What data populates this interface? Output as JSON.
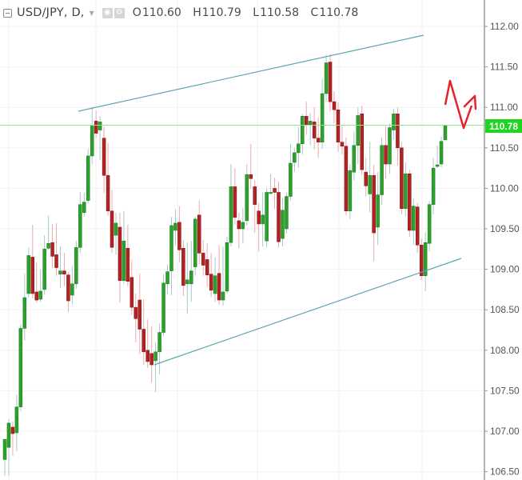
{
  "legend": {
    "symbol": "USD/JPY, D,",
    "icons": [
      "collapse-icon",
      "dropdown-caret-icon",
      "eye-icon",
      "gear-icon"
    ],
    "ohlc": [
      {
        "key": "O",
        "value": "110.60"
      },
      {
        "key": "H",
        "value": "110.79"
      },
      {
        "key": "L",
        "value": "110.58"
      },
      {
        "key": "C",
        "value": "110.78"
      }
    ]
  },
  "last_price_label": "110.78",
  "colors": {
    "up": "#2ca02c",
    "down": "#b22222",
    "up_wick": "#a8c8cc",
    "down_wick": "#f0a8b0",
    "trendline": "#5aa7b0",
    "price_line": "#8ee88e",
    "price_tag": "#1fd51f",
    "arrow": "#e8202a",
    "grid": "#f2f2f2",
    "axis": "#9a9a9a"
  },
  "chart_data": {
    "type": "candlestick",
    "title": "USD/JPY, D,",
    "xlabel": "",
    "ylabel": "",
    "ylim": [
      106.4,
      112.3
    ],
    "y_ticks": [
      "112.00",
      "111.50",
      "111.00",
      "110.50",
      "110.00",
      "109.50",
      "109.00",
      "108.50",
      "108.00",
      "107.50",
      "107.00",
      "106.50"
    ],
    "grid": true,
    "last_price": 110.78,
    "candles": [
      [
        106.65,
        106.9,
        106.45,
        106.85
      ],
      [
        106.8,
        107.1,
        106.45,
        107.15
      ],
      [
        107.05,
        106.97,
        106.7,
        107.12
      ],
      [
        106.98,
        107.3,
        106.75,
        107.45
      ],
      [
        107.3,
        108.27,
        107.25,
        108.32
      ],
      [
        108.27,
        108.65,
        108.12,
        108.95
      ],
      [
        108.7,
        109.17,
        108.65,
        109.27
      ],
      [
        109.15,
        108.7,
        108.64,
        109.55
      ],
      [
        108.72,
        108.62,
        108.59,
        109.08
      ],
      [
        108.63,
        108.73,
        108.6,
        109.0
      ],
      [
        108.75,
        109.25,
        108.69,
        109.42
      ],
      [
        109.26,
        109.32,
        109.24,
        109.66
      ],
      [
        109.33,
        109.16,
        109.01,
        109.56
      ],
      [
        109.18,
        109.02,
        108.92,
        109.57
      ],
      [
        108.94,
        108.98,
        108.77,
        109.28
      ],
      [
        108.98,
        108.94,
        108.79,
        109.2
      ],
      [
        108.93,
        108.61,
        108.47,
        108.97
      ],
      [
        108.68,
        108.82,
        108.57,
        109.04
      ],
      [
        108.82,
        109.27,
        108.76,
        109.35
      ],
      [
        109.27,
        109.8,
        109.2,
        109.95
      ],
      [
        109.7,
        109.83,
        109.65,
        109.94
      ],
      [
        109.85,
        110.4,
        109.81,
        110.49
      ],
      [
        110.4,
        110.77,
        110.3,
        111.0
      ],
      [
        110.83,
        110.68,
        110.62,
        110.96
      ],
      [
        110.72,
        110.82,
        110.35,
        110.89
      ],
      [
        110.62,
        110.16,
        109.94,
        110.76
      ],
      [
        110.16,
        109.72,
        109.66,
        110.56
      ],
      [
        109.72,
        109.27,
        109.2,
        109.98
      ],
      [
        109.42,
        109.57,
        109.18,
        109.7
      ],
      [
        109.52,
        108.86,
        108.59,
        109.7
      ],
      [
        108.86,
        109.35,
        108.82,
        109.72
      ],
      [
        109.26,
        108.85,
        108.79,
        109.55
      ],
      [
        108.9,
        108.53,
        108.44,
        109.12
      ],
      [
        108.53,
        108.39,
        108.1,
        108.7
      ],
      [
        108.62,
        108.26,
        107.95,
        108.95
      ],
      [
        108.26,
        107.98,
        107.82,
        108.63
      ],
      [
        108.0,
        107.86,
        107.78,
        108.38
      ],
      [
        107.96,
        107.82,
        107.6,
        108.3
      ],
      [
        107.87,
        107.98,
        107.48,
        108.1
      ],
      [
        107.98,
        108.22,
        107.7,
        108.33
      ],
      [
        108.22,
        108.83,
        108.17,
        108.94
      ],
      [
        108.82,
        108.97,
        108.69,
        109.06
      ],
      [
        108.98,
        109.54,
        108.68,
        109.65
      ],
      [
        109.48,
        109.57,
        109.3,
        109.74
      ],
      [
        109.58,
        109.24,
        109.09,
        109.78
      ],
      [
        109.26,
        108.8,
        108.67,
        109.36
      ],
      [
        108.82,
        108.87,
        108.45,
        109.33
      ],
      [
        108.82,
        108.98,
        108.6,
        109.35
      ],
      [
        109.03,
        109.62,
        108.92,
        109.65
      ],
      [
        109.67,
        109.2,
        109.06,
        109.85
      ],
      [
        109.2,
        109.05,
        108.92,
        109.36
      ],
      [
        109.12,
        108.93,
        108.78,
        109.32
      ],
      [
        108.94,
        108.74,
        108.66,
        109.2
      ],
      [
        108.7,
        108.92,
        108.6,
        109.15
      ],
      [
        108.95,
        108.62,
        108.56,
        109.3
      ],
      [
        108.62,
        108.72,
        108.55,
        109.28
      ],
      [
        108.73,
        109.33,
        108.7,
        109.4
      ],
      [
        109.33,
        110.02,
        109.28,
        110.3
      ],
      [
        110.02,
        109.64,
        109.55,
        110.25
      ],
      [
        109.6,
        109.5,
        109.26,
        109.7
      ],
      [
        109.5,
        109.58,
        109.32,
        109.76
      ],
      [
        109.6,
        110.17,
        109.54,
        110.3
      ],
      [
        110.17,
        110.12,
        109.99,
        110.55
      ],
      [
        110.02,
        109.8,
        109.45,
        110.1
      ],
      [
        109.72,
        109.56,
        109.22,
        109.82
      ],
      [
        109.56,
        109.67,
        109.28,
        109.95
      ],
      [
        109.35,
        109.95,
        109.27,
        110.0
      ],
      [
        109.95,
        109.95,
        109.94,
        110.18
      ],
      [
        110.0,
        109.95,
        109.75,
        110.13
      ],
      [
        109.95,
        109.34,
        109.27,
        110.08
      ],
      [
        109.38,
        109.73,
        109.28,
        109.88
      ],
      [
        109.5,
        109.9,
        109.44,
        109.95
      ],
      [
        109.9,
        110.31,
        109.85,
        110.55
      ],
      [
        110.32,
        110.44,
        110.2,
        110.5
      ],
      [
        110.44,
        110.55,
        110.25,
        110.76
      ],
      [
        110.55,
        110.89,
        110.42,
        110.92
      ],
      [
        110.89,
        110.78,
        110.66,
        111.07
      ],
      [
        110.78,
        110.83,
        110.53,
        110.93
      ],
      [
        110.82,
        110.62,
        110.48,
        111.0
      ],
      [
        110.62,
        110.57,
        110.38,
        110.88
      ],
      [
        110.57,
        111.17,
        110.49,
        111.35
      ],
      [
        111.17,
        111.55,
        111.07,
        111.65
      ],
      [
        111.56,
        111.07,
        110.95,
        111.66
      ],
      [
        111.07,
        110.97,
        110.8,
        111.2
      ],
      [
        110.97,
        110.57,
        110.45,
        111.06
      ],
      [
        110.57,
        110.52,
        110.42,
        110.77
      ],
      [
        110.52,
        109.72,
        109.67,
        110.63
      ],
      [
        109.72,
        110.22,
        109.62,
        110.3
      ],
      [
        110.2,
        110.53,
        110.1,
        110.7
      ],
      [
        110.53,
        110.9,
        110.3,
        111.0
      ],
      [
        110.92,
        110.23,
        110.16,
        111.02
      ],
      [
        110.2,
        110.03,
        109.9,
        110.38
      ],
      [
        109.93,
        110.16,
        109.7,
        110.57
      ],
      [
        110.16,
        109.45,
        109.1,
        110.29
      ],
      [
        109.52,
        109.92,
        109.3,
        110.2
      ],
      [
        109.92,
        110.53,
        109.8,
        110.63
      ],
      [
        110.53,
        110.3,
        110.12,
        110.77
      ],
      [
        110.3,
        110.75,
        110.18,
        110.8
      ],
      [
        110.72,
        110.92,
        110.6,
        110.98
      ],
      [
        110.92,
        110.5,
        110.28,
        111.0
      ],
      [
        110.5,
        109.75,
        109.68,
        110.57
      ],
      [
        109.75,
        110.18,
        109.65,
        110.32
      ],
      [
        110.18,
        109.48,
        109.4,
        110.23
      ],
      [
        109.48,
        109.78,
        109.3,
        109.88
      ],
      [
        109.77,
        109.3,
        109.2,
        109.82
      ],
      [
        109.3,
        108.92,
        108.87,
        109.38
      ],
      [
        108.92,
        109.33,
        108.73,
        109.46
      ],
      [
        109.32,
        109.8,
        109.22,
        109.84
      ],
      [
        109.8,
        110.25,
        109.68,
        110.37
      ],
      [
        110.27,
        110.29,
        110.25,
        110.53
      ],
      [
        110.3,
        110.58,
        110.26,
        110.64
      ],
      [
        110.6,
        110.78,
        110.58,
        110.79
      ]
    ],
    "annotations": [
      {
        "type": "trendline",
        "label": "upper channel",
        "from": [
          98,
          139
        ],
        "to": [
          530,
          44
        ]
      },
      {
        "type": "trendline",
        "label": "lower channel",
        "from": [
          193,
          456
        ],
        "to": [
          577,
          323
        ]
      },
      {
        "type": "horizontal-line",
        "label": "last price",
        "value": 110.78
      },
      {
        "type": "arrow",
        "label": "forecast zigzag up",
        "points": [
          [
            557,
            131
          ],
          [
            563,
            101
          ],
          [
            580,
            160
          ],
          [
            590,
            132
          ]
        ]
      }
    ]
  }
}
